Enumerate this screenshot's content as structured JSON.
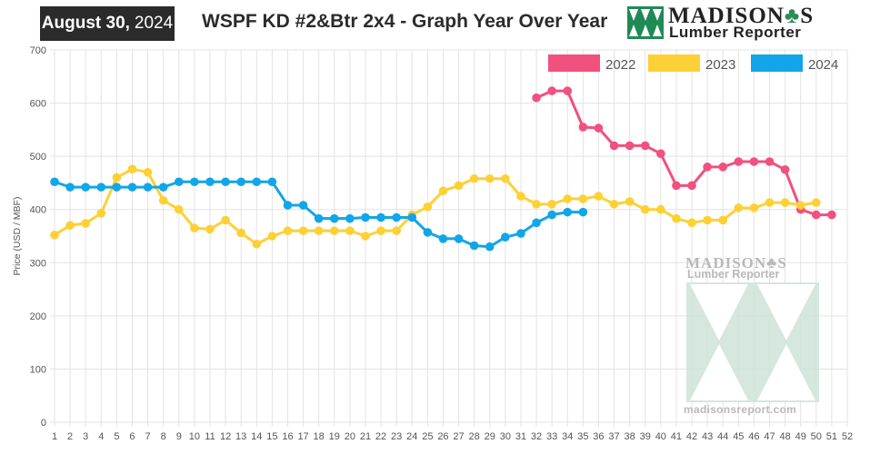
{
  "header": {
    "date_bold": "August 30,",
    "date_year": "2024",
    "title": "WSPF KD #2&Btr 2x4 - Graph Year Over Year"
  },
  "logo": {
    "brand_left": "MADISON",
    "brand_right": "S",
    "subtitle": "Lumber Reporter"
  },
  "watermark": {
    "brand_left": "MADISON",
    "brand_right": "S",
    "subtitle": "Lumber Reporter",
    "url": "madisonsreport.com"
  },
  "colors": {
    "2022": "#f0517f",
    "2023": "#fdd035",
    "2024": "#12a5e8",
    "grid": "#e3e3e3",
    "axis_text": "#555555",
    "watermark": "#cfe3d7"
  },
  "chart_data": {
    "type": "line",
    "title": "WSPF KD #2&Btr 2x4 - Graph Year Over Year",
    "xlabel": "",
    "ylabel": "Price (USD / MBF)",
    "ylim": [
      0,
      700
    ],
    "yticks": [
      0,
      100,
      200,
      300,
      400,
      500,
      600,
      700
    ],
    "x": [
      1,
      2,
      3,
      4,
      5,
      6,
      7,
      8,
      9,
      10,
      11,
      12,
      13,
      14,
      15,
      16,
      17,
      18,
      19,
      20,
      21,
      22,
      23,
      24,
      25,
      26,
      27,
      28,
      29,
      30,
      31,
      32,
      33,
      34,
      35,
      36,
      37,
      38,
      39,
      40,
      41,
      42,
      43,
      44,
      45,
      46,
      47,
      48,
      49,
      50,
      51,
      52
    ],
    "legend_position": "top-right",
    "series": [
      {
        "name": "2022",
        "x": [
          32,
          33,
          34,
          35,
          36,
          37,
          38,
          39,
          40,
          41,
          42,
          43,
          44,
          45,
          46,
          47,
          48,
          49,
          50,
          51
        ],
        "values": [
          610,
          623,
          623,
          555,
          553,
          520,
          520,
          520,
          505,
          445,
          445,
          480,
          480,
          490,
          490,
          490,
          475,
          400,
          390,
          390
        ]
      },
      {
        "name": "2023",
        "x": [
          1,
          2,
          3,
          4,
          5,
          6,
          7,
          8,
          9,
          10,
          11,
          12,
          13,
          14,
          15,
          16,
          17,
          18,
          19,
          20,
          21,
          22,
          23,
          24,
          25,
          26,
          27,
          28,
          29,
          30,
          31,
          32,
          33,
          34,
          35,
          36,
          37,
          38,
          39,
          40,
          41,
          42,
          43,
          44,
          45,
          46,
          47,
          48,
          49,
          50
        ],
        "values": [
          352,
          370,
          374,
          393,
          460,
          476,
          470,
          417,
          400,
          365,
          363,
          380,
          356,
          335,
          350,
          360,
          360,
          360,
          360,
          360,
          350,
          360,
          360,
          390,
          405,
          435,
          445,
          458,
          458,
          458,
          425,
          410,
          410,
          420,
          420,
          425,
          410,
          415,
          400,
          400,
          383,
          375,
          380,
          380,
          403,
          403,
          413,
          413,
          408,
          413
        ]
      },
      {
        "name": "2024",
        "x": [
          1,
          2,
          3,
          4,
          5,
          6,
          7,
          8,
          9,
          10,
          11,
          12,
          13,
          14,
          15,
          16,
          17,
          18,
          19,
          20,
          21,
          22,
          23,
          24,
          25,
          26,
          27,
          28,
          29,
          30,
          31,
          32,
          33,
          34,
          35
        ],
        "values": [
          452,
          442,
          442,
          442,
          442,
          442,
          442,
          442,
          452,
          452,
          452,
          452,
          452,
          452,
          452,
          408,
          408,
          383,
          383,
          383,
          385,
          385,
          385,
          385,
          357,
          345,
          345,
          332,
          330,
          348,
          355,
          375,
          390,
          395,
          395
        ]
      }
    ]
  }
}
